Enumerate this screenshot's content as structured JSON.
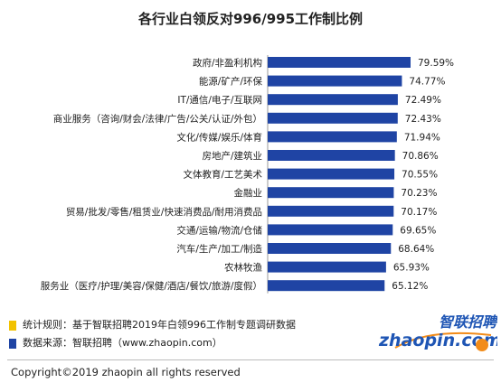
{
  "colors": {
    "bar": "#1f44a4",
    "note_yellow": "#f2c200",
    "note_blue": "#1f44a4",
    "logo_blue": "#1e55b4",
    "logo_orange": "#f28c1a"
  },
  "chart_data": {
    "type": "bar",
    "orientation": "horizontal",
    "title": "各行业白领反对996/995工作制比例",
    "categories": [
      "政府/非盈利机构",
      "能源/矿产/环保",
      "IT/通信/电子/互联网",
      "商业服务（咨询/财会/法律/广告/公关/认证/外包）",
      "文化/传媒/娱乐/体育",
      "房地产/建筑业",
      "文体教育/工艺美术",
      "金融业",
      "贸易/批发/零售/租赁业/快速消费品/耐用消费品",
      "交通/运输/物流/仓储",
      "汽车/生产/加工/制造",
      "农林牧渔",
      "服务业（医疗/护理/美容/保健/酒店/餐饮/旅游/度假）"
    ],
    "values": [
      79.59,
      74.77,
      72.49,
      72.43,
      71.94,
      70.86,
      70.55,
      70.23,
      70.17,
      69.65,
      68.64,
      65.93,
      65.12
    ],
    "value_labels": [
      "79.59%",
      "74.77%",
      "72.49%",
      "72.43%",
      "71.94%",
      "70.86%",
      "70.55%",
      "70.23%",
      "70.17%",
      "69.65%",
      "68.64%",
      "65.93%",
      "65.12%"
    ],
    "xlim": [
      0,
      80
    ],
    "grid": false,
    "legend": "none"
  },
  "notes": {
    "method": "统计规则：基于智联招聘2019年白领996工作制专题调研数据",
    "source": "数据来源：智联招聘（www.zhaopin.com）"
  },
  "copyright": "Copyright©2019 zhaopin all rights reserved",
  "logo": {
    "cn_text": "智联招聘",
    "en_text": "zhaopin.com"
  }
}
